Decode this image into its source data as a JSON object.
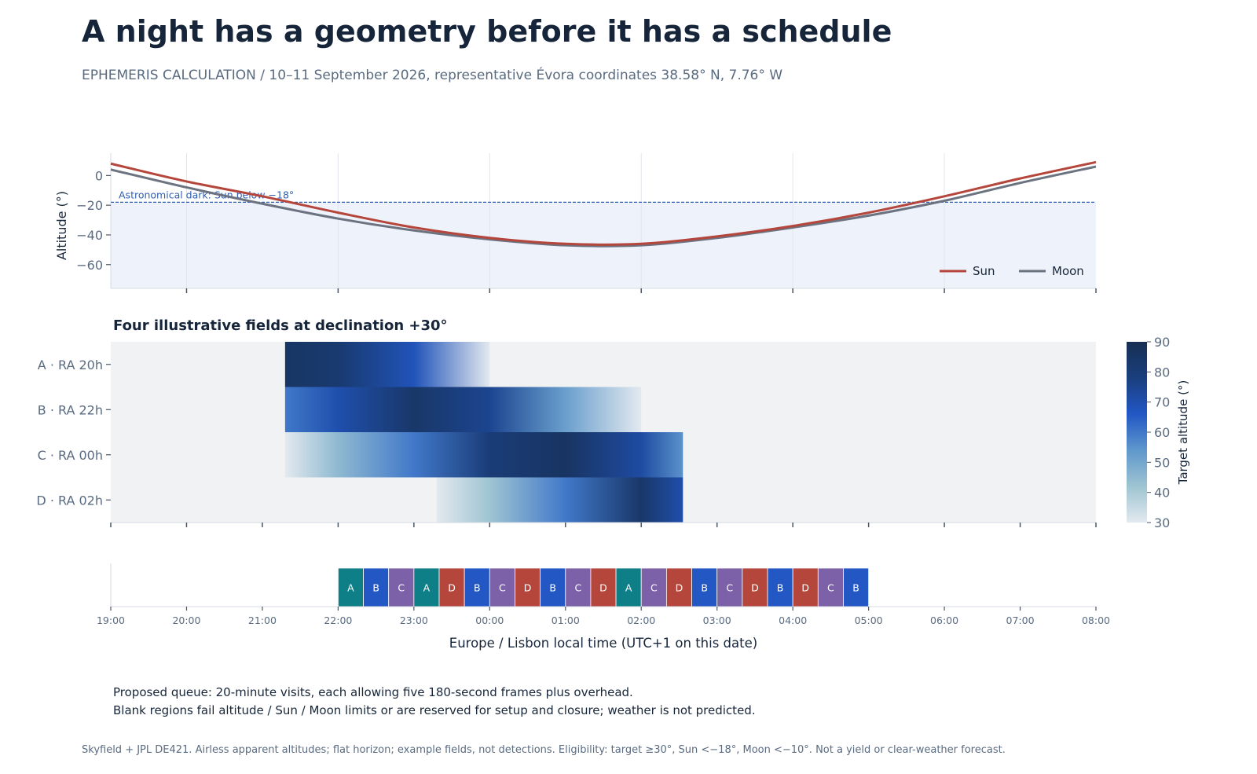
{
  "header": {
    "title": "A night has a geometry before it has a schedule",
    "subtitle": "EPHEMERIS CALCULATION  /  10–11 September 2026, representative Évora coordinates 38.58° N, 7.76° W"
  },
  "colors": {
    "sun": "#b5463c",
    "moon": "#6b7280",
    "dark_line": "#2f5fb3",
    "dark_fill": "#eef2fb",
    "field_bg": "#f1f2f4",
    "A": "#0e7f86",
    "B": "#2357c4",
    "C": "#7c61a8",
    "D": "#b5463c",
    "colorscale": [
      "#e3e9ef",
      "#9ec4d2",
      "#5f98cc",
      "#2257c5",
      "#1a3f7e",
      "#172f52"
    ]
  },
  "chart_data": [
    {
      "type": "line",
      "id": "altitude",
      "ylabel": "Altitude (°)",
      "ylim": [
        -76,
        15
      ],
      "yticks": [
        0,
        -20,
        -40,
        -60
      ],
      "xlim": [
        19,
        32
      ],
      "grid": true,
      "legend_placement": "bottom-right",
      "threshold": {
        "value": -18,
        "label": "Astronomical dark: Sun below −18°"
      },
      "series": [
        {
          "name": "Sun",
          "key": "sun",
          "x": [
            19,
            20,
            21,
            22,
            23,
            24,
            25,
            26,
            27,
            28,
            29,
            30,
            31,
            32
          ],
          "y": [
            8,
            -4,
            -14,
            -25,
            -35,
            -42,
            -46,
            -46,
            -41,
            -34,
            -25,
            -14,
            -2,
            9
          ]
        },
        {
          "name": "Moon",
          "key": "moon",
          "x": [
            19,
            20,
            21,
            22,
            23,
            24,
            25,
            26,
            27,
            28,
            29,
            30,
            31,
            32
          ],
          "y": [
            4,
            -8,
            -19,
            -29,
            -37,
            -43,
            -47,
            -47,
            -42,
            -35,
            -27,
            -17,
            -5,
            6
          ]
        }
      ]
    },
    {
      "type": "heatmap",
      "id": "fields",
      "title": "Four illustrative fields at declination +30°",
      "colorbar_label": "Target altitude (°)",
      "zlim": [
        30,
        90
      ],
      "colorbar_ticks": [
        30,
        40,
        50,
        60,
        70,
        80,
        90
      ],
      "xlim": [
        19,
        32
      ],
      "rows": [
        {
          "label": "A · RA 20h",
          "start": 21.3,
          "end": 24.0,
          "x": [
            21.3,
            22.0,
            23.0,
            24.0
          ],
          "z": [
            85,
            82,
            68,
            30
          ]
        },
        {
          "label": "B · RA 22h",
          "start": 21.3,
          "end": 26.0,
          "x": [
            21.3,
            22.0,
            23.0,
            24.0,
            25.0,
            26.0
          ],
          "z": [
            60,
            70,
            84,
            75,
            52,
            30
          ]
        },
        {
          "label": "C · RA 00h",
          "start": 21.3,
          "end": 26.55,
          "x": [
            21.3,
            22.0,
            23.0,
            24.0,
            25.0,
            26.0,
            26.55
          ],
          "z": [
            30,
            45,
            60,
            80,
            86,
            72,
            55
          ]
        },
        {
          "label": "D · RA 02h",
          "start": 23.3,
          "end": 26.55,
          "x": [
            23.3,
            24.0,
            25.0,
            26.0,
            26.55
          ],
          "z": [
            30,
            42,
            60,
            84,
            70
          ]
        }
      ]
    },
    {
      "type": "bar",
      "id": "queue",
      "xlabel": "Europe / Lisbon local time (UTC+1 on this date)",
      "xlim": [
        19,
        32
      ],
      "xticks": [
        "19:00",
        "20:00",
        "21:00",
        "22:00",
        "23:00",
        "00:00",
        "01:00",
        "02:00",
        "03:00",
        "04:00",
        "05:00",
        "06:00",
        "07:00",
        "08:00"
      ],
      "queue_start": 22.0,
      "visit_minutes": 20,
      "visits": [
        "A",
        "B",
        "C",
        "A",
        "D",
        "B",
        "C",
        "D",
        "B",
        "C",
        "D",
        "A",
        "C",
        "D",
        "B",
        "C",
        "D",
        "B",
        "D",
        "C",
        "B"
      ]
    }
  ],
  "notes": {
    "line1": "Proposed queue: 20-minute visits, each allowing five 180-second frames plus overhead.",
    "line2": "Blank regions fail altitude / Sun / Moon limits or are reserved for setup and closure; weather is not predicted."
  },
  "footer": "Skyfield + JPL DE421. Airless apparent altitudes; flat horizon; example fields, not detections. Eligibility: target ≥30°, Sun <−18°, Moon <−10°. Not a yield or clear-weather forecast."
}
